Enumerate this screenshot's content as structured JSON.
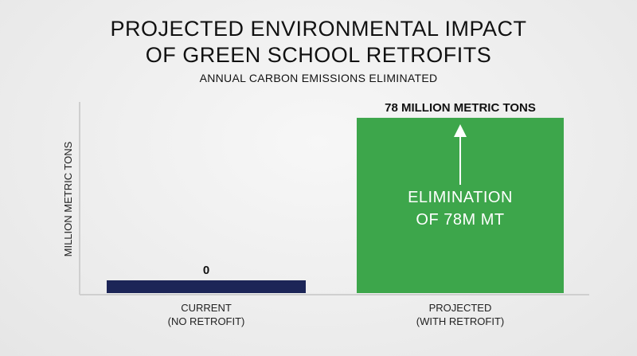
{
  "chart_data": {
    "type": "bar",
    "title": "PROJECTED ENVIRONMENTAL IMPACT\nOF GREEN SCHOOL RETROFITS",
    "subtitle": "ANNUAL CARBON EMISSIONS ELIMINATED",
    "y_label": "MILLION METRIC TONS",
    "categories": [
      "CURRENT\n(NO RETROFIT)",
      "PROJECTED\n(WITH RETROFIT)"
    ],
    "values": [
      0,
      78
    ],
    "value_labels": [
      "0",
      "78 MILLION METRIC TONS"
    ],
    "colors": [
      "#1c2557",
      "#3da64b"
    ],
    "annotation": "ELIMINATION\nOF 78M MT",
    "ylim": [
      0,
      85
    ]
  }
}
